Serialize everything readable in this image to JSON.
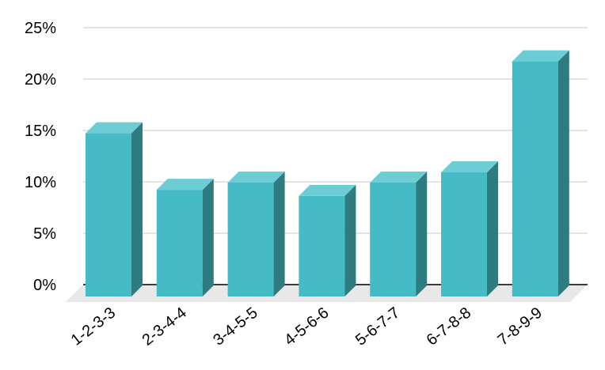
{
  "chart_data": {
    "type": "bar",
    "title": "",
    "xlabel": "",
    "ylabel": "",
    "categories": [
      "1-2-3-3",
      "2-3-4-4",
      "3-4-5-5",
      "4-5-6-6",
      "5-6-7-7",
      "6-7-8-8",
      "7-8-9-9"
    ],
    "values": [
      0.158,
      0.103,
      0.11,
      0.097,
      0.11,
      0.12,
      0.228
    ],
    "ylim": [
      0,
      0.25
    ],
    "yticks": [
      "0%",
      "5%",
      "10%",
      "15%",
      "20%",
      "25%"
    ],
    "grid": true,
    "legend": "none",
    "style": "3d-columns",
    "colors": {
      "bar_front": "#45BBC6",
      "bar_top": "#6CCDD4",
      "bar_side": "#2E7C80",
      "floor": "#E8E8E8",
      "grid": "#C8C8C8",
      "axis": "#000000"
    }
  }
}
